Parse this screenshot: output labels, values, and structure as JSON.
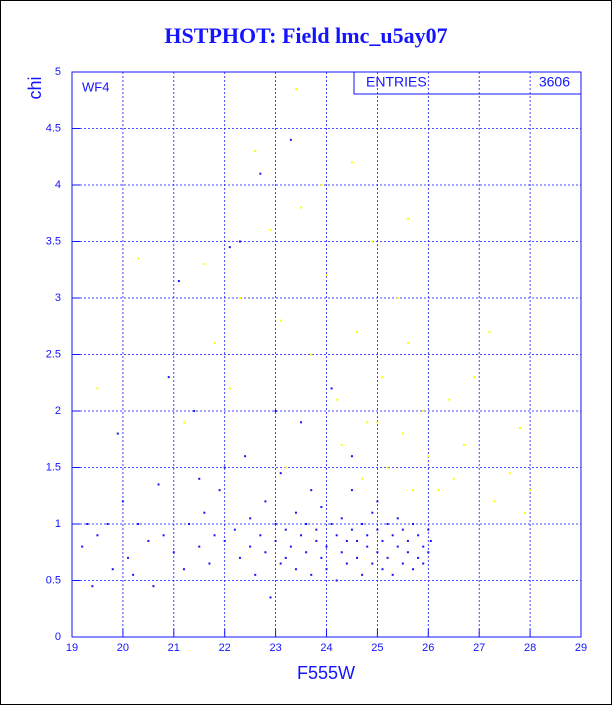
{
  "chart_data": {
    "type": "scatter",
    "title": "HSTPHOT: Field lmc_u5ay07",
    "xlabel": "F555W",
    "ylabel": "chi",
    "annotation": "WF4",
    "stats": {
      "label": "ENTRIES",
      "value": 3606
    },
    "xlim": [
      19,
      29
    ],
    "ylim": [
      0,
      5
    ],
    "xticks": [
      19,
      20,
      21,
      22,
      23,
      24,
      25,
      26,
      27,
      28,
      29
    ],
    "yticks": [
      0,
      0.5,
      1,
      1.5,
      2,
      2.5,
      3,
      3.5,
      4,
      4.5,
      5
    ],
    "grid": true,
    "series": [
      {
        "color": "#1414ff",
        "x": [
          19.2,
          19.4,
          19.5,
          19.7,
          19.8,
          19.9,
          20.1,
          20.2,
          20.3,
          20.5,
          20.6,
          20.8,
          20.9,
          21.0,
          21.1,
          21.2,
          21.3,
          21.4,
          21.5,
          21.6,
          21.7,
          21.8,
          21.9,
          22.0,
          22.1,
          22.2,
          22.3,
          22.3,
          22.4,
          22.5,
          22.5,
          22.6,
          22.7,
          22.7,
          22.8,
          22.8,
          22.9,
          23.0,
          23.0,
          23.1,
          23.1,
          23.2,
          23.2,
          23.3,
          23.3,
          23.4,
          23.4,
          23.5,
          23.5,
          23.6,
          23.6,
          23.7,
          23.7,
          23.8,
          23.8,
          23.9,
          23.9,
          24.0,
          24.0,
          24.1,
          24.1,
          24.2,
          24.2,
          24.3,
          24.3,
          24.4,
          24.4,
          24.5,
          24.5,
          24.6,
          24.6,
          24.7,
          24.7,
          24.8,
          24.8,
          24.9,
          24.9,
          25.0,
          25.0,
          25.1,
          25.1,
          25.2,
          25.2,
          25.3,
          25.3,
          25.4,
          25.4,
          25.5,
          25.5,
          25.6,
          25.6,
          25.7,
          25.7,
          25.8,
          25.8,
          25.9,
          25.9,
          26.0,
          26.0,
          26.05,
          20.0,
          21.5,
          22.0,
          23.0,
          24.5,
          25.0,
          19.3,
          20.7
        ],
        "y": [
          0.8,
          0.45,
          0.9,
          1.0,
          0.6,
          1.8,
          0.7,
          0.55,
          1.0,
          0.85,
          0.45,
          0.9,
          2.3,
          0.75,
          3.15,
          0.6,
          1.0,
          2.0,
          0.8,
          1.1,
          0.65,
          0.9,
          1.3,
          0.85,
          3.45,
          0.95,
          0.7,
          3.5,
          1.6,
          0.8,
          1.05,
          0.55,
          4.1,
          0.9,
          0.75,
          1.2,
          0.35,
          0.85,
          1.0,
          0.65,
          1.45,
          0.95,
          0.7,
          4.4,
          0.8,
          1.1,
          0.6,
          0.9,
          1.9,
          0.75,
          1.0,
          0.55,
          1.3,
          0.85,
          0.95,
          0.7,
          1.15,
          0.8,
          0.6,
          1.0,
          2.2,
          0.9,
          0.5,
          0.75,
          1.05,
          0.85,
          0.65,
          0.95,
          1.3,
          0.7,
          0.85,
          0.55,
          1.0,
          0.8,
          0.9,
          0.65,
          1.1,
          0.75,
          0.95,
          0.6,
          0.85,
          1.0,
          0.7,
          0.9,
          0.55,
          0.8,
          1.05,
          0.65,
          0.95,
          0.75,
          0.85,
          0.6,
          1.0,
          0.9,
          0.7,
          0.8,
          0.65,
          0.95,
          0.75,
          0.85,
          1.2,
          1.4,
          1.5,
          2.0,
          1.6,
          1.2,
          1.0,
          1.35
        ]
      },
      {
        "color": "#ffff00",
        "x": [
          19.5,
          20.3,
          21.2,
          21.6,
          21.8,
          22.1,
          22.3,
          22.6,
          22.9,
          23.1,
          23.4,
          23.5,
          23.7,
          23.9,
          24.0,
          24.2,
          24.3,
          24.5,
          24.6,
          24.7,
          24.9,
          25.0,
          25.1,
          25.2,
          25.4,
          25.5,
          25.6,
          25.7,
          25.9,
          26.0,
          26.2,
          26.4,
          26.5,
          26.7,
          26.9,
          27.2,
          27.3,
          27.6,
          27.8,
          27.9,
          28.0,
          25.6,
          24.8,
          23.2
        ],
        "y": [
          2.2,
          3.35,
          1.9,
          3.3,
          2.6,
          2.2,
          3.0,
          4.3,
          3.6,
          2.8,
          4.85,
          3.8,
          2.5,
          4.0,
          3.2,
          2.1,
          1.7,
          4.2,
          2.7,
          1.4,
          3.5,
          1.9,
          2.3,
          1.5,
          3.0,
          1.8,
          2.6,
          1.3,
          2.0,
          1.6,
          1.3,
          2.1,
          1.4,
          1.7,
          2.3,
          2.7,
          1.2,
          1.45,
          1.85,
          1.1,
          1.3,
          3.7,
          1.9,
          1.5
        ]
      }
    ]
  }
}
